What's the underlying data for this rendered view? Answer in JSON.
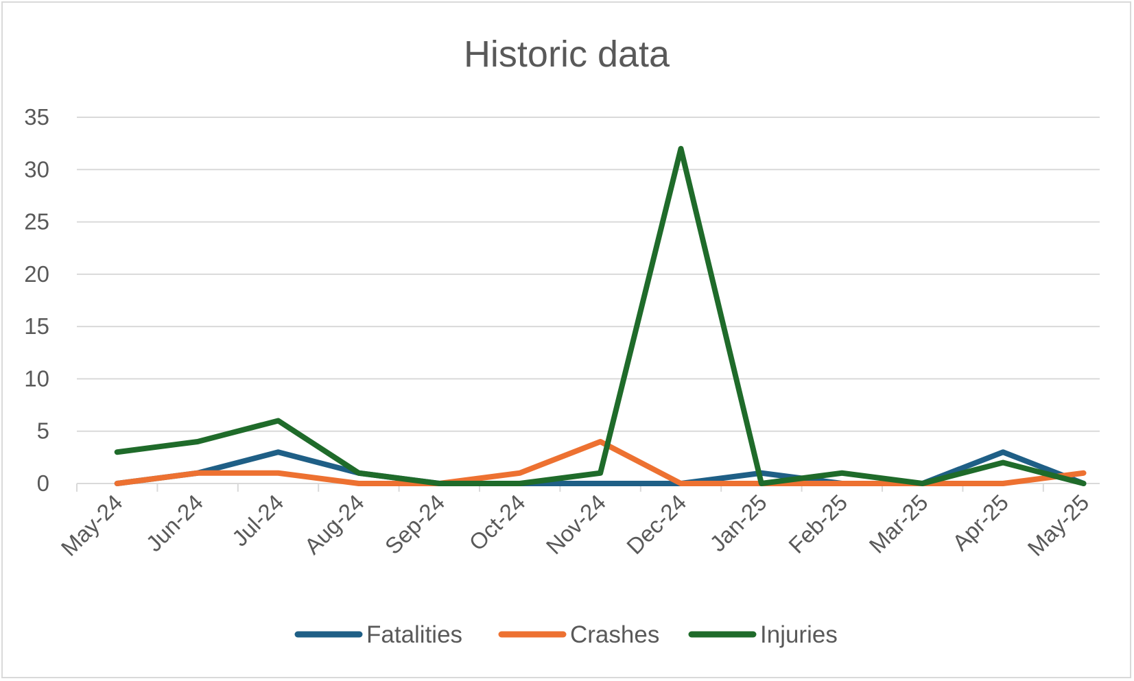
{
  "chart_data": {
    "type": "line",
    "title": "Historic data",
    "xlabel": "",
    "ylabel": "",
    "categories": [
      "May-24",
      "Jun-24",
      "Jul-24",
      "Aug-24",
      "Sep-24",
      "Oct-24",
      "Nov-24",
      "Dec-24",
      "Jan-25",
      "Feb-25",
      "Mar-25",
      "Apr-25",
      "May-25"
    ],
    "ylim": [
      0,
      35
    ],
    "yticks": [
      0,
      5,
      10,
      15,
      20,
      25,
      30,
      35
    ],
    "grid": true,
    "legend_position": "bottom",
    "series": [
      {
        "name": "Fatalities",
        "color": "#1f5f86",
        "values": [
          0,
          1,
          3,
          1,
          0,
          0,
          0,
          0,
          1,
          0,
          0,
          3,
          0
        ]
      },
      {
        "name": "Crashes",
        "color": "#ed7131",
        "values": [
          0,
          1,
          1,
          0,
          0,
          1,
          4,
          0,
          0,
          0,
          0,
          0,
          1
        ]
      },
      {
        "name": "Injuries",
        "color": "#1f6b2a",
        "values": [
          3,
          4,
          6,
          1,
          0,
          0,
          1,
          32,
          0,
          1,
          0,
          2,
          0
        ]
      }
    ]
  }
}
